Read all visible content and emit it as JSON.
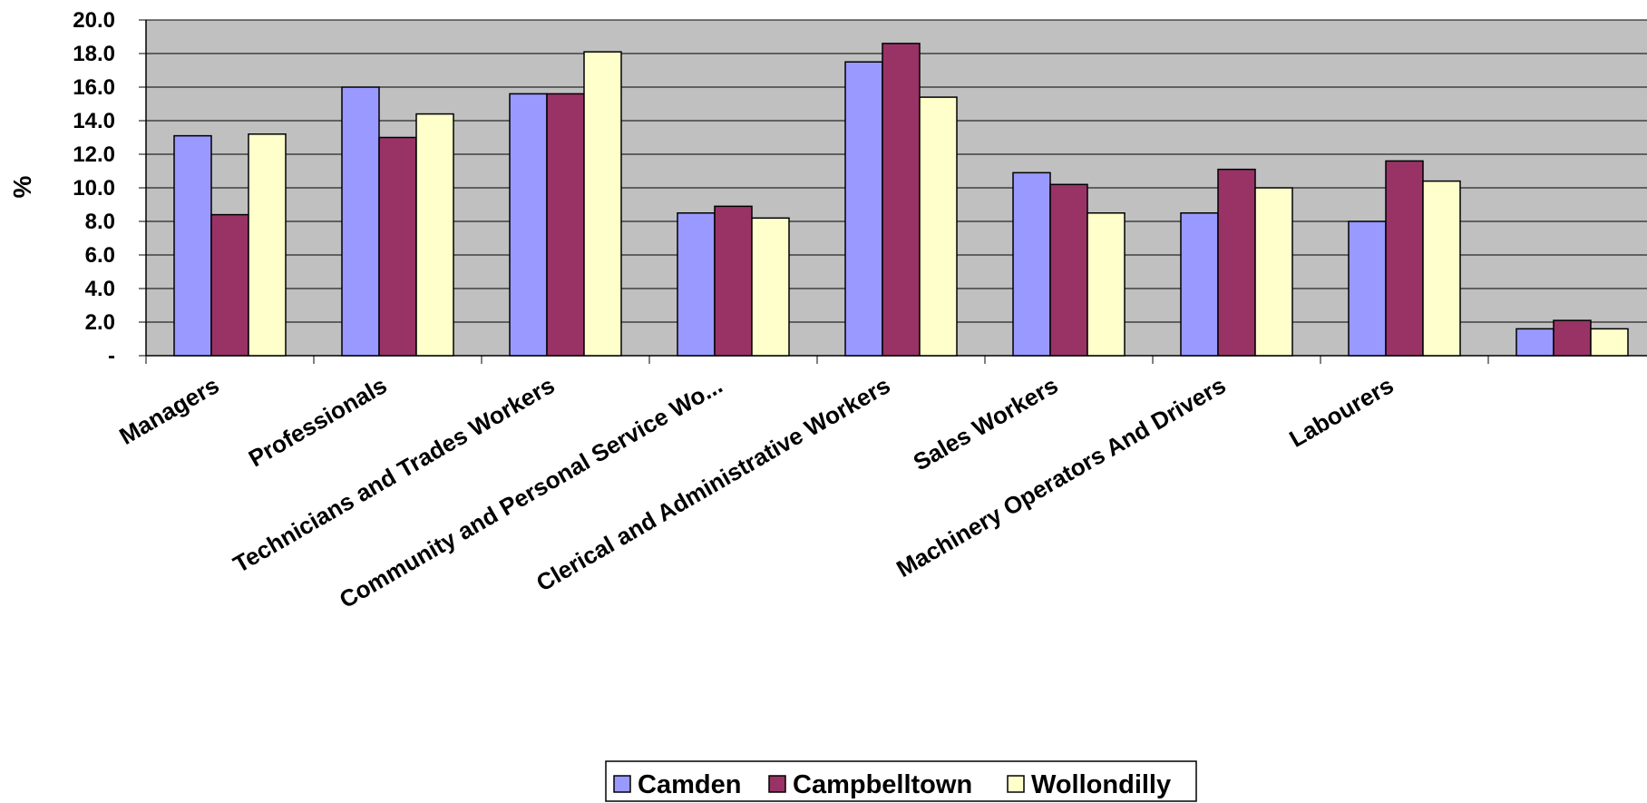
{
  "chart_data": {
    "type": "bar",
    "title": "",
    "xlabel": "",
    "ylabel": "%",
    "ylim": [
      0,
      20
    ],
    "y_ticks": [
      "-",
      "2.0",
      "4.0",
      "6.0",
      "8.0",
      "10.0",
      "12.0",
      "14.0",
      "16.0",
      "18.0",
      "20.0"
    ],
    "grid": true,
    "legend_position": "bottom-center",
    "categories": [
      "Managers",
      "Professionals",
      "Technicians and Trades Workers",
      "Community and Personal Service Wo...",
      "Clerical and Administrative Workers",
      "Sales Workers",
      "Machinery Operators And Drivers",
      "Labourers",
      ""
    ],
    "series": [
      {
        "name": "Camden",
        "color": "#9999FF",
        "values": [
          13.1,
          16.0,
          15.6,
          8.5,
          17.5,
          10.9,
          8.5,
          8.0,
          1.6
        ]
      },
      {
        "name": "Campbelltown",
        "color": "#993366",
        "values": [
          8.4,
          13.0,
          15.6,
          8.9,
          18.6,
          10.2,
          11.1,
          11.6,
          2.1
        ]
      },
      {
        "name": "Wollondilly",
        "color": "#FFFFCC",
        "values": [
          13.2,
          14.4,
          18.1,
          8.2,
          15.4,
          8.5,
          10.0,
          10.4,
          1.6
        ]
      }
    ],
    "plot_background": "#C0C0C0"
  }
}
